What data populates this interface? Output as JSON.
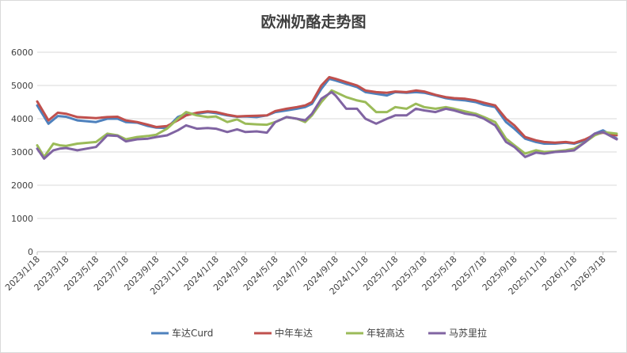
{
  "chart_data": {
    "type": "line",
    "title": "欧洲奶酪走势图",
    "xlabel": "",
    "ylabel": "",
    "ylim": [
      0,
      6000
    ],
    "yticks": [
      0,
      1000,
      2000,
      3000,
      4000,
      5000,
      6000
    ],
    "grid": true,
    "legend_position": "bottom",
    "x_tick_labels": [
      "2023/1/18",
      "2023/3/18",
      "2023/5/18",
      "2023/7/18",
      "2023/9/18",
      "2023/11/18",
      "2024/1/18",
      "2024/3/18",
      "2024/5/18",
      "2024/7/18",
      "2024/9/18",
      "2024/11/18",
      "2025/1/18",
      "2025/3/18",
      "2025/5/18",
      "2025/7/18",
      "2025/9/18",
      "2025/11/18",
      "2026/1/18",
      "2026/3/18"
    ],
    "x_range": [
      "2023/1/18",
      "2026/4/15"
    ],
    "series": [
      {
        "name": "车达Curd",
        "color": "#4e81bd",
        "points": [
          [
            "2023/1/18",
            4400
          ],
          [
            "2023/2/10",
            3850
          ],
          [
            "2023/3/1",
            4080
          ],
          [
            "2023/3/18",
            4060
          ],
          [
            "2023/4/10",
            3950
          ],
          [
            "2023/5/18",
            3900
          ],
          [
            "2023/6/10",
            4000
          ],
          [
            "2023/7/1",
            4000
          ],
          [
            "2023/7/18",
            3900
          ],
          [
            "2023/8/10",
            3880
          ],
          [
            "2023/9/1",
            3780
          ],
          [
            "2023/9/18",
            3730
          ],
          [
            "2023/10/10",
            3720
          ],
          [
            "2023/11/1",
            4050
          ],
          [
            "2023/11/18",
            4150
          ],
          [
            "2023/12/10",
            4150
          ],
          [
            "2024/1/1",
            4200
          ],
          [
            "2024/1/18",
            4170
          ],
          [
            "2024/2/10",
            4100
          ],
          [
            "2024/3/1",
            4060
          ],
          [
            "2024/3/18",
            4070
          ],
          [
            "2024/4/10",
            4050
          ],
          [
            "2024/5/1",
            4100
          ],
          [
            "2024/5/18",
            4200
          ],
          [
            "2024/6/10",
            4250
          ],
          [
            "2024/7/1",
            4300
          ],
          [
            "2024/7/18",
            4350
          ],
          [
            "2024/8/1",
            4450
          ],
          [
            "2024/8/20",
            4900
          ],
          [
            "2024/9/5",
            5200
          ],
          [
            "2024/9/18",
            5150
          ],
          [
            "2024/10/10",
            5050
          ],
          [
            "2024/11/1",
            4950
          ],
          [
            "2024/11/18",
            4800
          ],
          [
            "2024/12/10",
            4750
          ],
          [
            "2025/1/1",
            4700
          ],
          [
            "2025/1/18",
            4800
          ],
          [
            "2025/2/10",
            4780
          ],
          [
            "2025/3/1",
            4800
          ],
          [
            "2025/3/18",
            4780
          ],
          [
            "2025/4/10",
            4700
          ],
          [
            "2025/5/1",
            4620
          ],
          [
            "2025/5/18",
            4580
          ],
          [
            "2025/6/10",
            4550
          ],
          [
            "2025/7/1",
            4500
          ],
          [
            "2025/7/18",
            4420
          ],
          [
            "2025/8/10",
            4350
          ],
          [
            "2025/9/1",
            3900
          ],
          [
            "2025/9/18",
            3700
          ],
          [
            "2025/10/10",
            3400
          ],
          [
            "2025/11/1",
            3300
          ],
          [
            "2025/11/18",
            3250
          ],
          [
            "2025/12/10",
            3250
          ],
          [
            "2026/1/1",
            3280
          ],
          [
            "2026/1/18",
            3250
          ],
          [
            "2026/2/10",
            3350
          ],
          [
            "2026/3/1",
            3550
          ],
          [
            "2026/3/18",
            3650
          ],
          [
            "2026/4/15",
            3400
          ]
        ]
      },
      {
        "name": "中年车达",
        "color": "#c0504d",
        "points": [
          [
            "2023/1/18",
            4520
          ],
          [
            "2023/2/10",
            3950
          ],
          [
            "2023/3/1",
            4180
          ],
          [
            "2023/3/18",
            4150
          ],
          [
            "2023/4/10",
            4050
          ],
          [
            "2023/5/18",
            4020
          ],
          [
            "2023/6/10",
            4050
          ],
          [
            "2023/7/1",
            4060
          ],
          [
            "2023/7/18",
            3950
          ],
          [
            "2023/8/10",
            3900
          ],
          [
            "2023/9/1",
            3820
          ],
          [
            "2023/9/18",
            3750
          ],
          [
            "2023/10/10",
            3780
          ],
          [
            "2023/11/1",
            3950
          ],
          [
            "2023/11/18",
            4100
          ],
          [
            "2023/12/10",
            4180
          ],
          [
            "2024/1/1",
            4220
          ],
          [
            "2024/1/18",
            4200
          ],
          [
            "2024/2/10",
            4120
          ],
          [
            "2024/3/1",
            4070
          ],
          [
            "2024/3/18",
            4080
          ],
          [
            "2024/4/10",
            4090
          ],
          [
            "2024/5/1",
            4100
          ],
          [
            "2024/5/18",
            4230
          ],
          [
            "2024/6/10",
            4300
          ],
          [
            "2024/7/1",
            4350
          ],
          [
            "2024/7/18",
            4400
          ],
          [
            "2024/8/1",
            4500
          ],
          [
            "2024/8/20",
            5000
          ],
          [
            "2024/9/5",
            5250
          ],
          [
            "2024/9/18",
            5200
          ],
          [
            "2024/10/10",
            5100
          ],
          [
            "2024/11/1",
            5000
          ],
          [
            "2024/11/18",
            4850
          ],
          [
            "2024/12/10",
            4800
          ],
          [
            "2025/1/1",
            4780
          ],
          [
            "2025/1/18",
            4820
          ],
          [
            "2025/2/10",
            4800
          ],
          [
            "2025/3/1",
            4850
          ],
          [
            "2025/3/18",
            4820
          ],
          [
            "2025/4/10",
            4720
          ],
          [
            "2025/5/1",
            4650
          ],
          [
            "2025/5/18",
            4620
          ],
          [
            "2025/6/10",
            4600
          ],
          [
            "2025/7/1",
            4550
          ],
          [
            "2025/7/18",
            4480
          ],
          [
            "2025/8/10",
            4400
          ],
          [
            "2025/9/1",
            4000
          ],
          [
            "2025/9/18",
            3800
          ],
          [
            "2025/10/10",
            3450
          ],
          [
            "2025/11/1",
            3350
          ],
          [
            "2025/11/18",
            3300
          ],
          [
            "2025/12/10",
            3280
          ],
          [
            "2026/1/1",
            3300
          ],
          [
            "2026/1/18",
            3270
          ],
          [
            "2026/2/10",
            3380
          ],
          [
            "2026/3/1",
            3520
          ],
          [
            "2026/3/18",
            3580
          ],
          [
            "2026/4/15",
            3500
          ]
        ]
      },
      {
        "name": "年轻高达",
        "color": "#9bbb59",
        "points": [
          [
            "2023/1/18",
            3200
          ],
          [
            "2023/2/1",
            2850
          ],
          [
            "2023/2/20",
            3250
          ],
          [
            "2023/3/5",
            3200
          ],
          [
            "2023/3/18",
            3180
          ],
          [
            "2023/4/10",
            3250
          ],
          [
            "2023/5/18",
            3300
          ],
          [
            "2023/6/10",
            3550
          ],
          [
            "2023/7/1",
            3500
          ],
          [
            "2023/7/18",
            3380
          ],
          [
            "2023/8/10",
            3450
          ],
          [
            "2023/9/1",
            3480
          ],
          [
            "2023/9/18",
            3520
          ],
          [
            "2023/10/10",
            3700
          ],
          [
            "2023/11/1",
            4000
          ],
          [
            "2023/11/18",
            4200
          ],
          [
            "2023/12/10",
            4100
          ],
          [
            "2024/1/1",
            4050
          ],
          [
            "2024/1/18",
            4070
          ],
          [
            "2024/2/10",
            3900
          ],
          [
            "2024/3/1",
            3980
          ],
          [
            "2024/3/18",
            3850
          ],
          [
            "2024/4/10",
            3830
          ],
          [
            "2024/5/1",
            3820
          ],
          [
            "2024/5/18",
            3900
          ],
          [
            "2024/6/10",
            4050
          ],
          [
            "2024/7/1",
            4000
          ],
          [
            "2024/7/18",
            3900
          ],
          [
            "2024/8/1",
            4100
          ],
          [
            "2024/8/20",
            4500
          ],
          [
            "2024/9/10",
            4850
          ],
          [
            "2024/9/18",
            4800
          ],
          [
            "2024/10/10",
            4650
          ],
          [
            "2024/11/1",
            4550
          ],
          [
            "2024/11/18",
            4500
          ],
          [
            "2024/12/10",
            4200
          ],
          [
            "2025/1/1",
            4200
          ],
          [
            "2025/1/18",
            4350
          ],
          [
            "2025/2/10",
            4300
          ],
          [
            "2025/3/1",
            4450
          ],
          [
            "2025/3/18",
            4350
          ],
          [
            "2025/4/10",
            4300
          ],
          [
            "2025/5/1",
            4350
          ],
          [
            "2025/5/18",
            4300
          ],
          [
            "2025/6/10",
            4220
          ],
          [
            "2025/7/1",
            4150
          ],
          [
            "2025/7/18",
            4050
          ],
          [
            "2025/8/10",
            3900
          ],
          [
            "2025/9/1",
            3400
          ],
          [
            "2025/9/18",
            3200
          ],
          [
            "2025/10/10",
            2950
          ],
          [
            "2025/11/1",
            3050
          ],
          [
            "2025/11/18",
            3000
          ],
          [
            "2025/12/10",
            3020
          ],
          [
            "2026/1/1",
            3050
          ],
          [
            "2026/1/18",
            3100
          ],
          [
            "2026/2/10",
            3300
          ],
          [
            "2026/3/1",
            3500
          ],
          [
            "2026/3/18",
            3600
          ],
          [
            "2026/4/15",
            3550
          ]
        ]
      },
      {
        "name": "马苏里拉",
        "color": "#8064a2",
        "points": [
          [
            "2023/1/18",
            3100
          ],
          [
            "2023/2/1",
            2800
          ],
          [
            "2023/2/20",
            3050
          ],
          [
            "2023/3/5",
            3100
          ],
          [
            "2023/3/18",
            3120
          ],
          [
            "2023/4/10",
            3050
          ],
          [
            "2023/5/18",
            3150
          ],
          [
            "2023/6/10",
            3500
          ],
          [
            "2023/7/1",
            3480
          ],
          [
            "2023/7/18",
            3320
          ],
          [
            "2023/8/10",
            3380
          ],
          [
            "2023/9/1",
            3400
          ],
          [
            "2023/9/18",
            3450
          ],
          [
            "2023/10/10",
            3500
          ],
          [
            "2023/11/1",
            3650
          ],
          [
            "2023/11/18",
            3800
          ],
          [
            "2023/12/10",
            3700
          ],
          [
            "2024/1/1",
            3720
          ],
          [
            "2024/1/18",
            3700
          ],
          [
            "2024/2/10",
            3600
          ],
          [
            "2024/3/1",
            3680
          ],
          [
            "2024/3/18",
            3600
          ],
          [
            "2024/4/10",
            3620
          ],
          [
            "2024/5/1",
            3580
          ],
          [
            "2024/5/18",
            3900
          ],
          [
            "2024/6/10",
            4050
          ],
          [
            "2024/7/1",
            4000
          ],
          [
            "2024/7/18",
            3950
          ],
          [
            "2024/8/1",
            4150
          ],
          [
            "2024/8/20",
            4600
          ],
          [
            "2024/9/10",
            4800
          ],
          [
            "2024/9/18",
            4700
          ],
          [
            "2024/10/10",
            4300
          ],
          [
            "2024/11/1",
            4300
          ],
          [
            "2024/11/18",
            4000
          ],
          [
            "2024/12/10",
            3850
          ],
          [
            "2025/1/1",
            4000
          ],
          [
            "2025/1/18",
            4100
          ],
          [
            "2025/2/10",
            4100
          ],
          [
            "2025/3/1",
            4300
          ],
          [
            "2025/3/18",
            4250
          ],
          [
            "2025/4/10",
            4200
          ],
          [
            "2025/5/1",
            4300
          ],
          [
            "2025/5/18",
            4250
          ],
          [
            "2025/6/10",
            4150
          ],
          [
            "2025/7/1",
            4100
          ],
          [
            "2025/7/18",
            4000
          ],
          [
            "2025/8/10",
            3800
          ],
          [
            "2025/9/1",
            3300
          ],
          [
            "2025/9/18",
            3150
          ],
          [
            "2025/10/10",
            2850
          ],
          [
            "2025/11/1",
            2980
          ],
          [
            "2025/11/18",
            2950
          ],
          [
            "2025/12/10",
            3000
          ],
          [
            "2026/1/1",
            3020
          ],
          [
            "2026/1/18",
            3050
          ],
          [
            "2026/2/10",
            3300
          ],
          [
            "2026/3/1",
            3550
          ],
          [
            "2026/3/18",
            3600
          ],
          [
            "2026/4/15",
            3380
          ]
        ]
      }
    ]
  }
}
